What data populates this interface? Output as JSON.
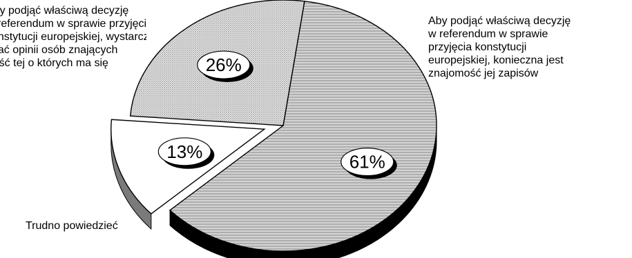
{
  "chart_data": {
    "type": "pie",
    "slices": [
      {
        "value": 61,
        "label": "61%",
        "fill": "#d8d8d8",
        "side_fill": "#000000"
      },
      {
        "value": 13,
        "label": "13%",
        "fill": "#ffffff",
        "side_fill": "#7a7a7a"
      },
      {
        "value": 26,
        "label": "26%",
        "fill": "#dcdcdc",
        "side_fill": "#000000"
      }
    ],
    "annotations": {
      "right": "Aby podjąć właściwą decyzję\nw referendum w sprawie\nprzyjęcia konstytucji\neuropejskiej, konieczna jest\nznajomość jej zapisów",
      "left": "Aby podjąć właściwą decyzję\nw referendum w sprawie przyjęcia\nkonstytucji europejskiej, wystarczy\nznać opinii osób znających\ntreść tej o których ma się",
      "bottom": "Trudno powiedzieć"
    }
  }
}
